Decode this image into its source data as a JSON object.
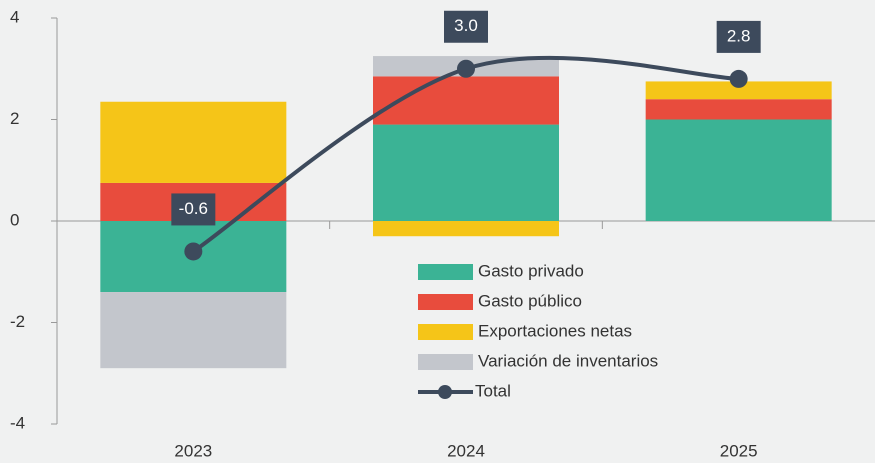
{
  "chart_data": {
    "type": "bar",
    "categories": [
      "2023",
      "2024",
      "2025"
    ],
    "series": [
      {
        "name": "Gasto privado",
        "color": "#3bb395",
        "values": [
          -1.4,
          1.9,
          2.0
        ]
      },
      {
        "name": "Gasto público",
        "color": "#e84c3d",
        "values": [
          0.75,
          0.95,
          0.4
        ]
      },
      {
        "name": "Exportaciones netas",
        "color": "#f5c518",
        "values": [
          1.6,
          -0.3,
          0.35
        ]
      },
      {
        "name": "Variación de inventarios",
        "color": "#c3c6cc",
        "values": [
          -1.5,
          0.4,
          0
        ]
      }
    ],
    "total": {
      "name": "Total",
      "color": "#3d4a5c",
      "values": [
        -0.6,
        3.0,
        2.8
      ],
      "value_labels": [
        "-0.6",
        "3.0",
        "2.8"
      ]
    },
    "ylim": [
      -4,
      4
    ],
    "yticks": [
      4,
      2,
      0,
      -2,
      -4
    ],
    "stacked": true
  }
}
